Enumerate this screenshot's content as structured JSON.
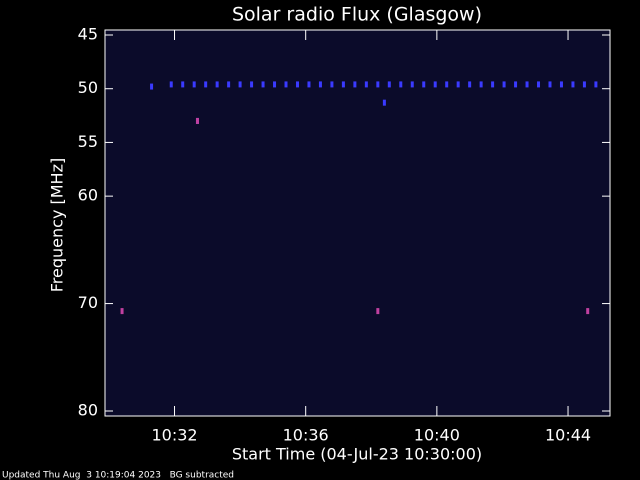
{
  "chart_data": {
    "type": "scatter",
    "title": "Solar radio Flux (Glasgow)",
    "y_label": "Frequency [MHz]",
    "x_label": "Start Time (04-Jul-23 10:30:00)",
    "footer": "Updated Thu Aug  3 10:19:04 2023   BG subtracted",
    "background": "#0b0b2a",
    "xlim": [
      -0.12,
      15.28
    ],
    "xticks": [
      {
        "value": 2,
        "label": "10:32"
      },
      {
        "value": 6,
        "label": "10:36"
      },
      {
        "value": 10,
        "label": "10:40"
      },
      {
        "value": 14,
        "label": "10:44"
      }
    ],
    "ylim": [
      45,
      80
    ],
    "yticks": [
      45,
      50,
      55,
      60,
      70,
      80
    ],
    "series": [
      {
        "color": "#3a3aff",
        "x": [
          1.3,
          1.9,
          2.25,
          2.6,
          2.95,
          3.3,
          3.65,
          4.0,
          4.35,
          4.7,
          5.05,
          5.4,
          5.75,
          6.1,
          6.45,
          6.8,
          7.15,
          7.5,
          7.85,
          8.2,
          8.55,
          8.9,
          9.25,
          9.6,
          9.95,
          10.3,
          10.65,
          11.0,
          11.35,
          11.7,
          12.05,
          12.4,
          12.75,
          13.1,
          13.45,
          13.8,
          14.15,
          14.5,
          14.85,
          2.7,
          8.4
        ],
        "y": [
          49.8,
          49.6,
          49.6,
          49.6,
          49.6,
          49.6,
          49.6,
          49.6,
          49.6,
          49.6,
          49.6,
          49.6,
          49.6,
          49.6,
          49.6,
          49.6,
          49.6,
          49.6,
          49.6,
          49.6,
          49.6,
          49.6,
          49.6,
          49.6,
          49.6,
          49.6,
          49.6,
          49.6,
          49.6,
          49.6,
          49.6,
          49.6,
          49.6,
          49.6,
          49.6,
          49.6,
          49.6,
          49.6,
          49.6,
          53.0,
          51.3
        ]
      },
      {
        "color": "#c040a0",
        "x": [
          0.4,
          2.7,
          8.2,
          14.6
        ],
        "y": [
          70.7,
          53.0,
          70.7,
          70.7
        ]
      }
    ]
  }
}
